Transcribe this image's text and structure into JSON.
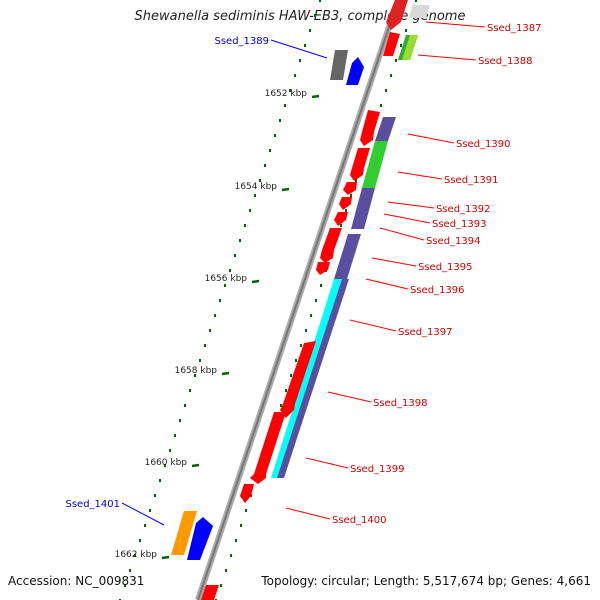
{
  "title": "Shewanella sediminis HAW-EB3, complete genome",
  "footer": {
    "accession": "Accession: NC_009831",
    "topology": "Topology: circular; Length: 5,517,674 bp; Genes: 4,661"
  },
  "scale_labels": [
    "1652 kbp",
    "1654 kbp",
    "1656 kbp",
    "1658 kbp",
    "1660 kbp",
    "1662 kbp"
  ],
  "gene_labels": {
    "forward": [
      "Ssed_1387",
      "Ssed_1388",
      "Ssed_1390",
      "Ssed_1391",
      "Ssed_1392",
      "Ssed_1393",
      "Ssed_1394",
      "Ssed_1395",
      "Ssed_1396",
      "Ssed_1397",
      "Ssed_1398",
      "Ssed_1399",
      "Ssed_1400"
    ],
    "reverse": [
      "Ssed_1389",
      "Ssed_1401"
    ]
  },
  "colors": {
    "backbone": "#888888",
    "forward_cds": "#ff0000",
    "reverse_cds": "#0000ff",
    "forward_label": "#cc0000",
    "reverse_label": "#0000cc",
    "tick": "#006600",
    "cog_purple": "#5a4f9e",
    "cog_green": "#33cc33",
    "cog_cyan": "#00ffff",
    "cog_gray": "#666666",
    "cog_orange": "#ff9900",
    "cog_yellowgreen": "#99dd33"
  }
}
